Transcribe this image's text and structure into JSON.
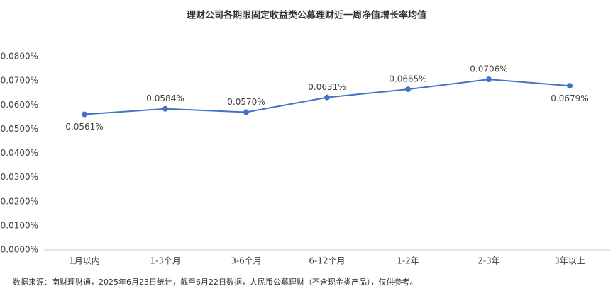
{
  "chart_data": {
    "type": "line",
    "title": "理财公司各期限固定收益类公募理财近一周净值增长率均值",
    "categories": [
      "1月以内",
      "1-3个月",
      "3-6个月",
      "6-12个月",
      "1-2年",
      "2-3年",
      "3年以上"
    ],
    "values": [
      0.0561,
      0.0584,
      0.057,
      0.0631,
      0.0665,
      0.0706,
      0.0679
    ],
    "value_labels": [
      "0.0561%",
      "0.0584%",
      "0.0570%",
      "0.0631%",
      "0.0665%",
      "0.0706%",
      "0.0679%"
    ],
    "color": "#4472c4",
    "ylim": [
      0,
      0.08
    ],
    "yticks": [
      {
        "value": 0,
        "label": "0.0000%"
      },
      {
        "value": 0.01,
        "label": "0.0100%"
      },
      {
        "value": 0.02,
        "label": "0.0200%"
      },
      {
        "value": 0.03,
        "label": "0.0300%"
      },
      {
        "value": 0.04,
        "label": "0.0400%"
      },
      {
        "value": 0.05,
        "label": "0.0500%"
      },
      {
        "value": 0.06,
        "label": "0.0600%"
      },
      {
        "value": 0.07,
        "label": "0.0700%"
      },
      {
        "value": 0.08,
        "label": "0.0800%"
      }
    ],
    "grid": false,
    "note": "数据来源：南财理财通，2025年6月23日统计，截至6月22日数据，人民币公募理财（不含现金类产品），仅供参考。"
  }
}
